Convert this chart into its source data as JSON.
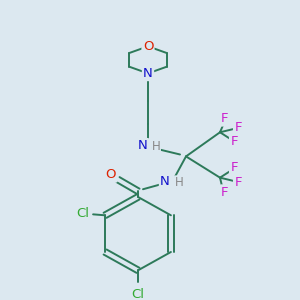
{
  "background_color": "#dce8f0",
  "bond_color": "#2d7a5a",
  "atom_colors": {
    "O": "#dd2200",
    "N": "#1111cc",
    "F": "#cc22cc",
    "Cl": "#33aa33",
    "H": "#888888"
  },
  "bond_lw": 1.4,
  "font_size_atom": 9.5,
  "font_size_H": 8.5
}
